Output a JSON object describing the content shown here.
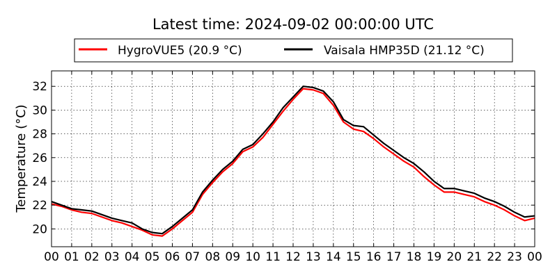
{
  "chart_data": {
    "type": "line",
    "title": "Latest time: 2024-09-02 00:00:00 UTC",
    "xlabel": "",
    "ylabel": "Temperature (°C)",
    "xlim": [
      0,
      24
    ],
    "ylim": [
      18.5,
      33.3
    ],
    "grid": true,
    "legend_position": "top",
    "x_tick_labels": [
      "00",
      "01",
      "02",
      "03",
      "04",
      "05",
      "06",
      "07",
      "08",
      "09",
      "10",
      "11",
      "12",
      "13",
      "14",
      "15",
      "16",
      "17",
      "18",
      "19",
      "20",
      "21",
      "22",
      "23",
      "00"
    ],
    "y_ticks": [
      20,
      22,
      24,
      26,
      28,
      30,
      32
    ],
    "x": [
      0,
      0.5,
      1,
      1.5,
      2,
      2.5,
      3,
      3.5,
      4,
      4.5,
      5,
      5.5,
      6,
      6.5,
      7,
      7.5,
      8,
      8.5,
      9,
      9.5,
      10,
      10.5,
      11,
      11.5,
      12,
      12.5,
      13,
      13.5,
      14,
      14.5,
      15,
      15.5,
      16,
      16.5,
      17,
      17.5,
      18,
      18.5,
      19,
      19.5,
      20,
      20.5,
      21,
      21.5,
      22,
      22.5,
      23,
      23.5,
      24
    ],
    "series": [
      {
        "name": "HygroVUE5 (20.9 °C)",
        "color": "#ff0000",
        "values": [
          22.1,
          21.9,
          21.6,
          21.4,
          21.3,
          21.0,
          20.7,
          20.5,
          20.2,
          19.9,
          19.5,
          19.4,
          20.0,
          20.7,
          21.4,
          22.9,
          23.9,
          24.8,
          25.5,
          26.5,
          26.9,
          27.7,
          28.8,
          29.9,
          30.9,
          31.8,
          31.7,
          31.4,
          30.4,
          29.0,
          28.4,
          28.2,
          27.6,
          26.9,
          26.3,
          25.7,
          25.2,
          24.4,
          23.7,
          23.1,
          23.1,
          22.9,
          22.7,
          22.3,
          22.0,
          21.6,
          21.1,
          20.7,
          20.9
        ]
      },
      {
        "name": "Vaisala HMP35D (21.12 °C)",
        "color": "#000000",
        "values": [
          22.3,
          22.0,
          21.7,
          21.6,
          21.5,
          21.2,
          20.9,
          20.7,
          20.5,
          20.0,
          19.7,
          19.6,
          20.2,
          20.9,
          21.6,
          23.1,
          24.1,
          25.0,
          25.7,
          26.7,
          27.1,
          28.0,
          29.0,
          30.2,
          31.1,
          32.0,
          31.9,
          31.6,
          30.7,
          29.2,
          28.7,
          28.6,
          27.9,
          27.2,
          26.6,
          26.0,
          25.5,
          24.8,
          24.0,
          23.4,
          23.4,
          23.2,
          23.0,
          22.6,
          22.3,
          21.9,
          21.4,
          21.0,
          21.1
        ]
      }
    ]
  }
}
